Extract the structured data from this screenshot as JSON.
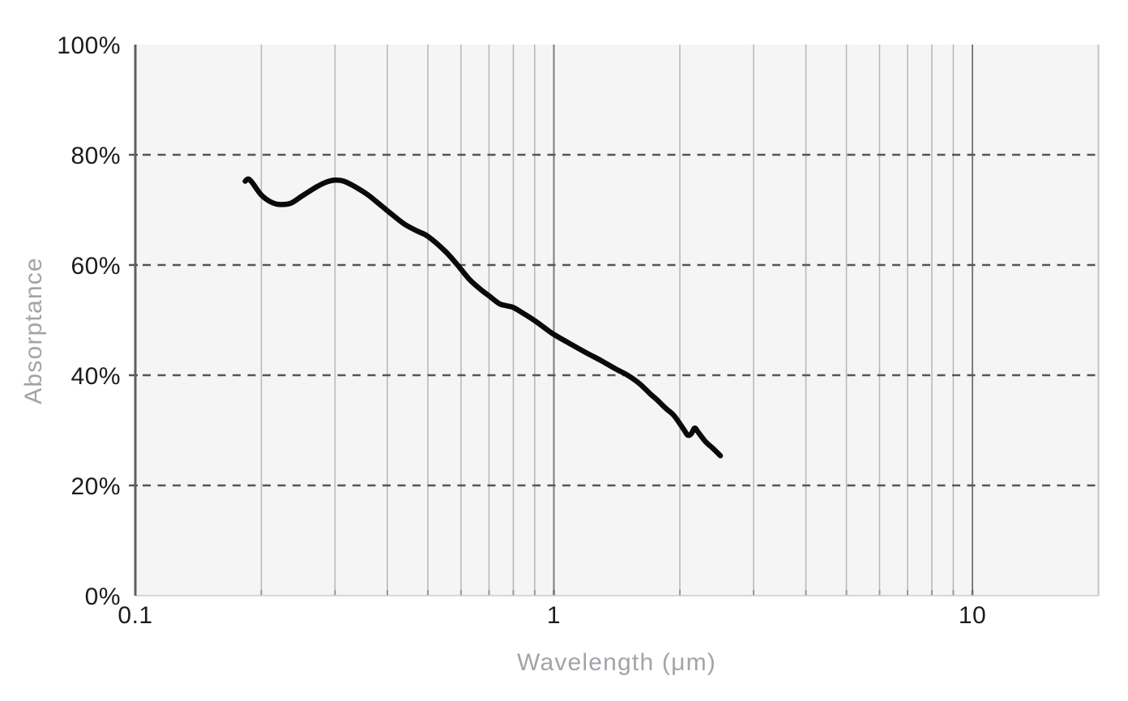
{
  "chart_data": {
    "type": "line",
    "title": "",
    "xlabel": "Wavelength (μm)",
    "ylabel": "Absorptance",
    "legend": false,
    "grid": true,
    "x_axis": {
      "scale": "log",
      "min": 0.1,
      "max": 20,
      "unit": "μm",
      "ticks": [
        {
          "value": 0.1,
          "label": "0.1"
        },
        {
          "value": 1,
          "label": "1"
        },
        {
          "value": 10,
          "label": "10"
        }
      ],
      "minor_gridlines": [
        0.2,
        0.3,
        0.4,
        0.5,
        0.6,
        0.7,
        0.8,
        0.9,
        2,
        3,
        4,
        5,
        6,
        7,
        8,
        9
      ],
      "major_gridlines": [
        1,
        10
      ]
    },
    "y_axis": {
      "scale": "linear",
      "min": 0,
      "max": 100,
      "unit": "%",
      "ticks": [
        {
          "value": 0,
          "label": "0%"
        },
        {
          "value": 20,
          "label": "20%"
        },
        {
          "value": 40,
          "label": "40%"
        },
        {
          "value": 60,
          "label": "60%"
        },
        {
          "value": 80,
          "label": "80%"
        },
        {
          "value": 100,
          "label": "100%"
        }
      ],
      "dashed_gridlines": [
        20,
        40,
        60,
        80
      ]
    },
    "series": [
      {
        "name": "absorptance",
        "style": "solid",
        "color": "#0a0a0a",
        "points": [
          [
            0.183,
            75.2
          ],
          [
            0.186,
            75.6
          ],
          [
            0.19,
            75.0
          ],
          [
            0.2,
            72.7
          ],
          [
            0.21,
            71.5
          ],
          [
            0.22,
            71.0
          ],
          [
            0.235,
            71.2
          ],
          [
            0.25,
            72.5
          ],
          [
            0.27,
            74.1
          ],
          [
            0.285,
            75.0
          ],
          [
            0.3,
            75.4
          ],
          [
            0.315,
            75.2
          ],
          [
            0.335,
            74.2
          ],
          [
            0.36,
            72.7
          ],
          [
            0.385,
            70.9
          ],
          [
            0.41,
            69.2
          ],
          [
            0.44,
            67.4
          ],
          [
            0.47,
            66.2
          ],
          [
            0.5,
            65.2
          ],
          [
            0.55,
            62.5
          ],
          [
            0.59,
            59.9
          ],
          [
            0.63,
            57.3
          ],
          [
            0.67,
            55.5
          ],
          [
            0.7,
            54.4
          ],
          [
            0.74,
            53.0
          ],
          [
            0.77,
            52.6
          ],
          [
            0.8,
            52.3
          ],
          [
            0.85,
            51.1
          ],
          [
            0.9,
            49.9
          ],
          [
            0.95,
            48.6
          ],
          [
            1.0,
            47.4
          ],
          [
            1.1,
            45.6
          ],
          [
            1.2,
            44.0
          ],
          [
            1.3,
            42.6
          ],
          [
            1.4,
            41.2
          ],
          [
            1.5,
            40.0
          ],
          [
            1.6,
            38.5
          ],
          [
            1.7,
            36.6
          ],
          [
            1.76,
            35.6
          ],
          [
            1.85,
            34.0
          ],
          [
            1.93,
            32.8
          ],
          [
            2.0,
            31.2
          ],
          [
            2.05,
            30.0
          ],
          [
            2.09,
            29.1
          ],
          [
            2.13,
            29.4
          ],
          [
            2.17,
            30.4
          ],
          [
            2.21,
            29.7
          ],
          [
            2.3,
            28.0
          ],
          [
            2.4,
            26.7
          ],
          [
            2.5,
            25.4
          ]
        ]
      }
    ],
    "colors": {
      "background": "#ffffff",
      "plot_background": "#f5f5f5",
      "minor_gridline": "#b6b6b6",
      "major_gridline": "#7c7c7c",
      "minor_tick": "#98989a",
      "major_tick": "#6a6a6a",
      "plot_right_edge": "#c2c2c2",
      "plot_bottom_edge": "#cccccc",
      "dashed_gridline": "#565658",
      "y_axis_line": "#5f5f62",
      "tick_label": "#1c1c1c",
      "axis_title": "#a5a2a8",
      "curve": "#0a0a0a"
    }
  }
}
